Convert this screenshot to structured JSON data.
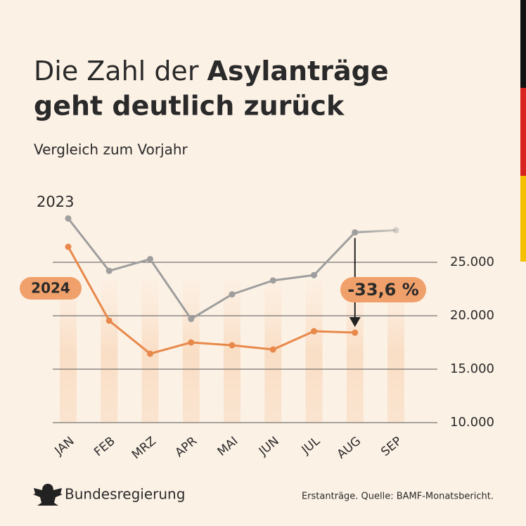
{
  "chart_data": {
    "type": "line",
    "title": {
      "line1_regular": "Die Zahl der",
      "line1_bold": "Asylanträge",
      "line2_bold": "geht deutlich zurück"
    },
    "subtitle": "Vergleich zum Vorjahr",
    "categories": [
      "JAN",
      "FEB",
      "MRZ",
      "APR",
      "MAI",
      "JUN",
      "JUL",
      "AUG",
      "SEP"
    ],
    "series": [
      {
        "name": "2023",
        "color": "#9e9e9e",
        "values": [
          29100,
          24200,
          25300,
          19700,
          22000,
          23300,
          23800,
          27800,
          28000
        ]
      },
      {
        "name": "2024",
        "color": "#e8894b",
        "values": [
          26450,
          19540,
          16450,
          17500,
          17240,
          16840,
          18550,
          18420,
          null
        ]
      }
    ],
    "annotation": "-33,6 %",
    "ylim": [
      10000,
      30000
    ],
    "yticks": [
      {
        "value": 10000,
        "label": "10.000"
      },
      {
        "value": 15000,
        "label": "15.000"
      },
      {
        "value": 20000,
        "label": "20.000"
      },
      {
        "value": 25000,
        "label": "25.000"
      }
    ],
    "grid": true,
    "footer": {
      "brand": "Bundesregierung",
      "source": "Erstanträge. Quelle: BAMF-Monatsbericht."
    }
  }
}
